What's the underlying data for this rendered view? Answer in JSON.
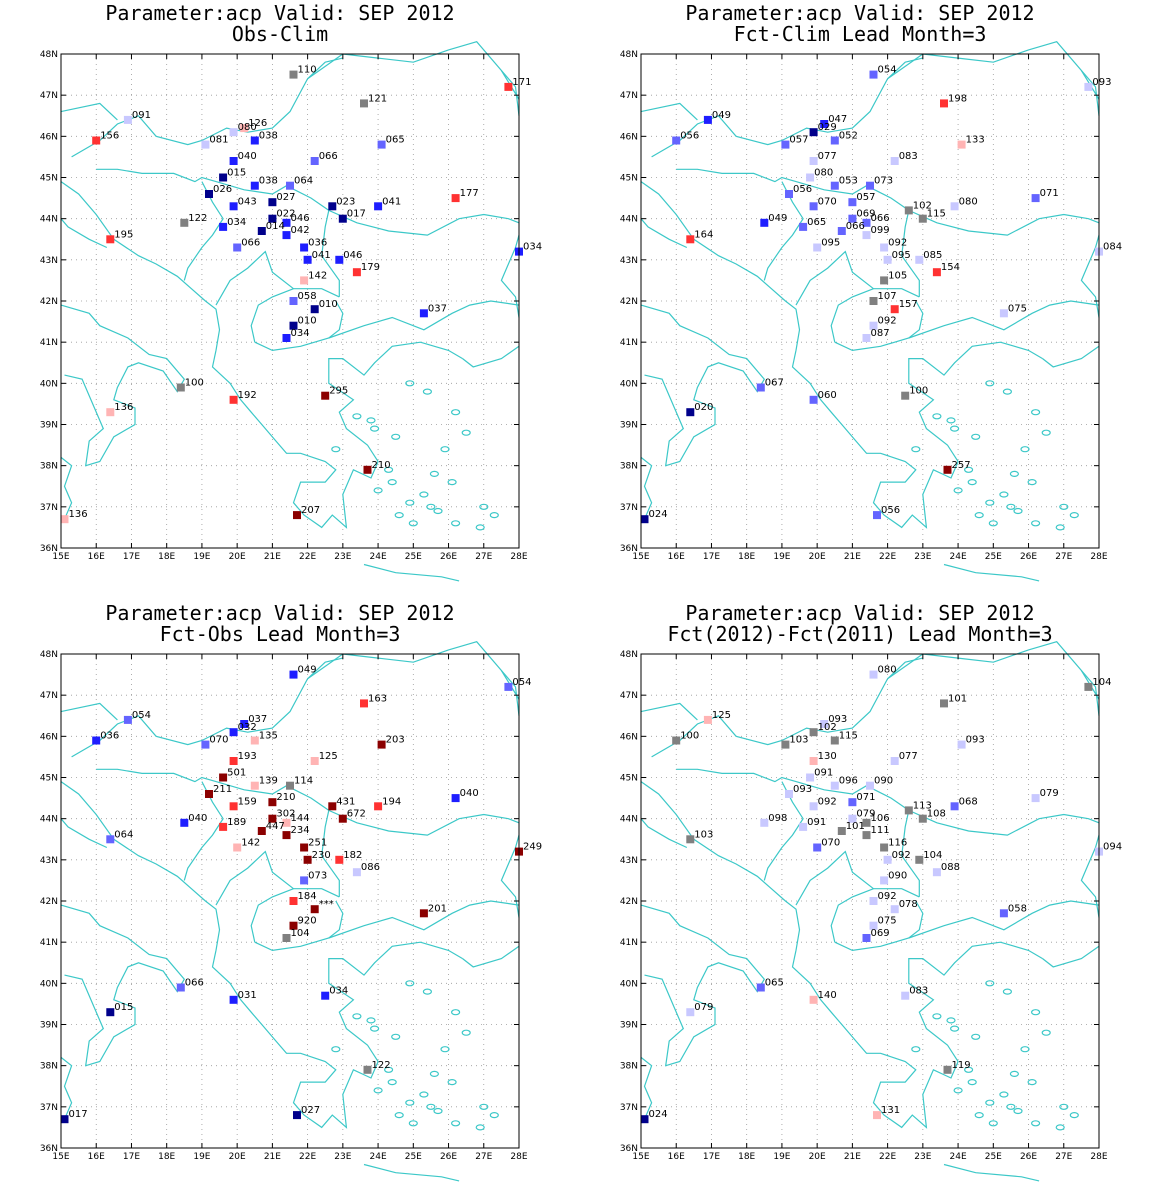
{
  "panels": [
    {
      "title1": "Parameter:acp Valid: SEP 2012",
      "title2": "Obs-Clim",
      "stations": [
        {
          "lon": 21.6,
          "lat": 47.5,
          "v": "110"
        },
        {
          "lon": 27.7,
          "lat": 47.2,
          "v": "171"
        },
        {
          "lon": 23.6,
          "lat": 46.8,
          "v": "121"
        },
        {
          "lon": 16.9,
          "lat": 46.4,
          "v": "091"
        },
        {
          "lon": 20.2,
          "lat": 46.2,
          "v": "126"
        },
        {
          "lon": 19.9,
          "lat": 46.1,
          "v": "080"
        },
        {
          "lon": 16.0,
          "lat": 45.9,
          "v": "156"
        },
        {
          "lon": 19.1,
          "lat": 45.8,
          "v": "081"
        },
        {
          "lon": 20.5,
          "lat": 45.9,
          "v": "038"
        },
        {
          "lon": 24.1,
          "lat": 45.8,
          "v": "065"
        },
        {
          "lon": 22.2,
          "lat": 45.4,
          "v": "066"
        },
        {
          "lon": 19.9,
          "lat": 45.4,
          "v": "040"
        },
        {
          "lon": 19.6,
          "lat": 45.0,
          "v": "015"
        },
        {
          "lon": 20.5,
          "lat": 44.8,
          "v": "038"
        },
        {
          "lon": 21.5,
          "lat": 44.8,
          "v": "064"
        },
        {
          "lon": 19.2,
          "lat": 44.6,
          "v": "026"
        },
        {
          "lon": 21.0,
          "lat": 44.4,
          "v": "027"
        },
        {
          "lon": 19.9,
          "lat": 44.3,
          "v": "043"
        },
        {
          "lon": 22.7,
          "lat": 44.3,
          "v": "023"
        },
        {
          "lon": 24.0,
          "lat": 44.3,
          "v": "041"
        },
        {
          "lon": 26.2,
          "lat": 44.5,
          "v": "177"
        },
        {
          "lon": 21.0,
          "lat": 44.0,
          "v": "022"
        },
        {
          "lon": 21.4,
          "lat": 43.9,
          "v": "046"
        },
        {
          "lon": 23.0,
          "lat": 44.0,
          "v": "017"
        },
        {
          "lon": 18.5,
          "lat": 43.9,
          "v": "122"
        },
        {
          "lon": 19.6,
          "lat": 43.8,
          "v": "034"
        },
        {
          "lon": 20.7,
          "lat": 43.7,
          "v": "014"
        },
        {
          "lon": 21.4,
          "lat": 43.6,
          "v": "042"
        },
        {
          "lon": 16.4,
          "lat": 43.5,
          "v": "195"
        },
        {
          "lon": 20.0,
          "lat": 43.3,
          "v": "066"
        },
        {
          "lon": 21.9,
          "lat": 43.3,
          "v": "036"
        },
        {
          "lon": 22.0,
          "lat": 43.0,
          "v": "041"
        },
        {
          "lon": 22.9,
          "lat": 43.0,
          "v": "046"
        },
        {
          "lon": 23.4,
          "lat": 42.7,
          "v": "179"
        },
        {
          "lon": 21.9,
          "lat": 42.5,
          "v": "142"
        },
        {
          "lon": 21.6,
          "lat": 42.0,
          "v": "058"
        },
        {
          "lon": 22.2,
          "lat": 41.8,
          "v": "010"
        },
        {
          "lon": 25.3,
          "lat": 41.7,
          "v": "037"
        },
        {
          "lon": 21.6,
          "lat": 41.4,
          "v": "010"
        },
        {
          "lon": 21.4,
          "lat": 41.1,
          "v": "034"
        },
        {
          "lon": 18.4,
          "lat": 39.9,
          "v": "100"
        },
        {
          "lon": 19.9,
          "lat": 39.6,
          "v": "192"
        },
        {
          "lon": 22.5,
          "lat": 39.7,
          "v": "295"
        },
        {
          "lon": 16.4,
          "lat": 39.3,
          "v": "136"
        },
        {
          "lon": 23.7,
          "lat": 37.9,
          "v": "210"
        },
        {
          "lon": 21.7,
          "lat": 36.8,
          "v": "207"
        },
        {
          "lon": 15.1,
          "lat": 36.7,
          "v": "136"
        },
        {
          "lon": 28.0,
          "lat": 43.2,
          "v": "034"
        }
      ]
    },
    {
      "title1": "Parameter:acp Valid: SEP 2012",
      "title2": "Fct-Clim Lead Month=3",
      "stations": [
        {
          "lon": 21.6,
          "lat": 47.5,
          "v": "054"
        },
        {
          "lon": 27.7,
          "lat": 47.2,
          "v": "093"
        },
        {
          "lon": 23.6,
          "lat": 46.8,
          "v": "198"
        },
        {
          "lon": 16.9,
          "lat": 46.4,
          "v": "049"
        },
        {
          "lon": 20.2,
          "lat": 46.3,
          "v": "047"
        },
        {
          "lon": 19.9,
          "lat": 46.1,
          "v": "029"
        },
        {
          "lon": 16.0,
          "lat": 45.9,
          "v": "056"
        },
        {
          "lon": 19.1,
          "lat": 45.8,
          "v": "057"
        },
        {
          "lon": 20.5,
          "lat": 45.9,
          "v": "052"
        },
        {
          "lon": 24.1,
          "lat": 45.8,
          "v": "133"
        },
        {
          "lon": 22.2,
          "lat": 45.4,
          "v": "083"
        },
        {
          "lon": 19.9,
          "lat": 45.4,
          "v": "077"
        },
        {
          "lon": 19.8,
          "lat": 45.0,
          "v": "080"
        },
        {
          "lon": 20.5,
          "lat": 44.8,
          "v": "053"
        },
        {
          "lon": 21.5,
          "lat": 44.8,
          "v": "073"
        },
        {
          "lon": 19.2,
          "lat": 44.6,
          "v": "056"
        },
        {
          "lon": 21.0,
          "lat": 44.4,
          "v": "057"
        },
        {
          "lon": 19.9,
          "lat": 44.3,
          "v": "070"
        },
        {
          "lon": 22.6,
          "lat": 44.2,
          "v": "102"
        },
        {
          "lon": 23.9,
          "lat": 44.3,
          "v": "080"
        },
        {
          "lon": 26.2,
          "lat": 44.5,
          "v": "071"
        },
        {
          "lon": 21.0,
          "lat": 44.0,
          "v": "069"
        },
        {
          "lon": 21.4,
          "lat": 43.9,
          "v": "066"
        },
        {
          "lon": 23.0,
          "lat": 44.0,
          "v": "115"
        },
        {
          "lon": 18.5,
          "lat": 43.9,
          "v": "049"
        },
        {
          "lon": 19.6,
          "lat": 43.8,
          "v": "065"
        },
        {
          "lon": 20.7,
          "lat": 43.7,
          "v": "066"
        },
        {
          "lon": 21.4,
          "lat": 43.6,
          "v": "099"
        },
        {
          "lon": 16.4,
          "lat": 43.5,
          "v": "164"
        },
        {
          "lon": 20.0,
          "lat": 43.3,
          "v": "095"
        },
        {
          "lon": 21.9,
          "lat": 43.3,
          "v": "092"
        },
        {
          "lon": 22.0,
          "lat": 43.0,
          "v": "095"
        },
        {
          "lon": 22.9,
          "lat": 43.0,
          "v": "085"
        },
        {
          "lon": 23.4,
          "lat": 42.7,
          "v": "154"
        },
        {
          "lon": 21.9,
          "lat": 42.5,
          "v": "105"
        },
        {
          "lon": 21.6,
          "lat": 42.0,
          "v": "107"
        },
        {
          "lon": 22.2,
          "lat": 41.8,
          "v": "157"
        },
        {
          "lon": 25.3,
          "lat": 41.7,
          "v": "075"
        },
        {
          "lon": 21.6,
          "lat": 41.4,
          "v": "092"
        },
        {
          "lon": 21.4,
          "lat": 41.1,
          "v": "087"
        },
        {
          "lon": 18.4,
          "lat": 39.9,
          "v": "067"
        },
        {
          "lon": 19.9,
          "lat": 39.6,
          "v": "060"
        },
        {
          "lon": 22.5,
          "lat": 39.7,
          "v": "100"
        },
        {
          "lon": 16.4,
          "lat": 39.3,
          "v": "020"
        },
        {
          "lon": 23.7,
          "lat": 37.9,
          "v": "257"
        },
        {
          "lon": 21.7,
          "lat": 36.8,
          "v": "056"
        },
        {
          "lon": 15.1,
          "lat": 36.7,
          "v": "024"
        },
        {
          "lon": 28.0,
          "lat": 43.2,
          "v": "084"
        }
      ]
    },
    {
      "title1": "Parameter:acp Valid: SEP 2012",
      "title2": "Fct-Obs Lead Month=3",
      "stations": [
        {
          "lon": 21.6,
          "lat": 47.5,
          "v": "049"
        },
        {
          "lon": 27.7,
          "lat": 47.2,
          "v": "054"
        },
        {
          "lon": 23.6,
          "lat": 46.8,
          "v": "163"
        },
        {
          "lon": 16.9,
          "lat": 46.4,
          "v": "054"
        },
        {
          "lon": 20.2,
          "lat": 46.3,
          "v": "037"
        },
        {
          "lon": 19.9,
          "lat": 46.1,
          "v": "032"
        },
        {
          "lon": 16.0,
          "lat": 45.9,
          "v": "036"
        },
        {
          "lon": 19.1,
          "lat": 45.8,
          "v": "070"
        },
        {
          "lon": 20.5,
          "lat": 45.9,
          "v": "135"
        },
        {
          "lon": 24.1,
          "lat": 45.8,
          "v": "203"
        },
        {
          "lon": 22.2,
          "lat": 45.4,
          "v": "125"
        },
        {
          "lon": 19.9,
          "lat": 45.4,
          "v": "193"
        },
        {
          "lon": 19.6,
          "lat": 45.0,
          "v": "501"
        },
        {
          "lon": 20.5,
          "lat": 44.8,
          "v": "139"
        },
        {
          "lon": 21.5,
          "lat": 44.8,
          "v": "114"
        },
        {
          "lon": 19.2,
          "lat": 44.6,
          "v": "211"
        },
        {
          "lon": 21.0,
          "lat": 44.4,
          "v": "210"
        },
        {
          "lon": 19.9,
          "lat": 44.3,
          "v": "159"
        },
        {
          "lon": 22.7,
          "lat": 44.3,
          "v": "431"
        },
        {
          "lon": 24.0,
          "lat": 44.3,
          "v": "194"
        },
        {
          "lon": 26.2,
          "lat": 44.5,
          "v": "040"
        },
        {
          "lon": 21.0,
          "lat": 44.0,
          "v": "302"
        },
        {
          "lon": 21.4,
          "lat": 43.9,
          "v": "144"
        },
        {
          "lon": 23.0,
          "lat": 44.0,
          "v": "672"
        },
        {
          "lon": 18.5,
          "lat": 43.9,
          "v": "040"
        },
        {
          "lon": 19.6,
          "lat": 43.8,
          "v": "189"
        },
        {
          "lon": 20.7,
          "lat": 43.7,
          "v": "447"
        },
        {
          "lon": 21.4,
          "lat": 43.6,
          "v": "234"
        },
        {
          "lon": 16.4,
          "lat": 43.5,
          "v": "064"
        },
        {
          "lon": 20.0,
          "lat": 43.3,
          "v": "142"
        },
        {
          "lon": 21.9,
          "lat": 43.3,
          "v": "251"
        },
        {
          "lon": 22.0,
          "lat": 43.0,
          "v": "230"
        },
        {
          "lon": 22.9,
          "lat": 43.0,
          "v": "182"
        },
        {
          "lon": 23.4,
          "lat": 42.7,
          "v": "086"
        },
        {
          "lon": 21.9,
          "lat": 42.5,
          "v": "073"
        },
        {
          "lon": 21.6,
          "lat": 42.0,
          "v": "184"
        },
        {
          "lon": 22.2,
          "lat": 41.8,
          "v": "***"
        },
        {
          "lon": 25.3,
          "lat": 41.7,
          "v": "201"
        },
        {
          "lon": 21.6,
          "lat": 41.4,
          "v": "920"
        },
        {
          "lon": 21.4,
          "lat": 41.1,
          "v": "104"
        },
        {
          "lon": 18.4,
          "lat": 39.9,
          "v": "066"
        },
        {
          "lon": 19.9,
          "lat": 39.6,
          "v": "031"
        },
        {
          "lon": 22.5,
          "lat": 39.7,
          "v": "034"
        },
        {
          "lon": 16.4,
          "lat": 39.3,
          "v": "015"
        },
        {
          "lon": 23.7,
          "lat": 37.9,
          "v": "122"
        },
        {
          "lon": 21.7,
          "lat": 36.8,
          "v": "027"
        },
        {
          "lon": 15.1,
          "lat": 36.7,
          "v": "017"
        },
        {
          "lon": 28.0,
          "lat": 43.2,
          "v": "249"
        }
      ]
    },
    {
      "title1": "Parameter:acp Valid: SEP 2012",
      "title2": "Fct(2012)-Fct(2011) Lead Month=3",
      "stations": [
        {
          "lon": 21.6,
          "lat": 47.5,
          "v": "080"
        },
        {
          "lon": 27.7,
          "lat": 47.2,
          "v": "104"
        },
        {
          "lon": 23.6,
          "lat": 46.8,
          "v": "101"
        },
        {
          "lon": 16.9,
          "lat": 46.4,
          "v": "125"
        },
        {
          "lon": 20.2,
          "lat": 46.3,
          "v": "093"
        },
        {
          "lon": 19.9,
          "lat": 46.1,
          "v": "102"
        },
        {
          "lon": 16.0,
          "lat": 45.9,
          "v": "100"
        },
        {
          "lon": 19.1,
          "lat": 45.8,
          "v": "103"
        },
        {
          "lon": 20.5,
          "lat": 45.9,
          "v": "115"
        },
        {
          "lon": 24.1,
          "lat": 45.8,
          "v": "093"
        },
        {
          "lon": 22.2,
          "lat": 45.4,
          "v": "077"
        },
        {
          "lon": 19.9,
          "lat": 45.4,
          "v": "130"
        },
        {
          "lon": 19.8,
          "lat": 45.0,
          "v": "091"
        },
        {
          "lon": 20.5,
          "lat": 44.8,
          "v": "096"
        },
        {
          "lon": 21.5,
          "lat": 44.8,
          "v": "090"
        },
        {
          "lon": 19.2,
          "lat": 44.6,
          "v": "093"
        },
        {
          "lon": 21.0,
          "lat": 44.4,
          "v": "071"
        },
        {
          "lon": 19.9,
          "lat": 44.3,
          "v": "092"
        },
        {
          "lon": 22.6,
          "lat": 44.2,
          "v": "113"
        },
        {
          "lon": 23.9,
          "lat": 44.3,
          "v": "068"
        },
        {
          "lon": 26.2,
          "lat": 44.5,
          "v": "079"
        },
        {
          "lon": 21.0,
          "lat": 44.0,
          "v": "079"
        },
        {
          "lon": 21.4,
          "lat": 43.9,
          "v": "106"
        },
        {
          "lon": 23.0,
          "lat": 44.0,
          "v": "108"
        },
        {
          "lon": 18.5,
          "lat": 43.9,
          "v": "098"
        },
        {
          "lon": 19.6,
          "lat": 43.8,
          "v": "091"
        },
        {
          "lon": 20.7,
          "lat": 43.7,
          "v": "101"
        },
        {
          "lon": 21.4,
          "lat": 43.6,
          "v": "111"
        },
        {
          "lon": 16.4,
          "lat": 43.5,
          "v": "103"
        },
        {
          "lon": 20.0,
          "lat": 43.3,
          "v": "070"
        },
        {
          "lon": 21.9,
          "lat": 43.3,
          "v": "116"
        },
        {
          "lon": 22.0,
          "lat": 43.0,
          "v": "092"
        },
        {
          "lon": 22.9,
          "lat": 43.0,
          "v": "104"
        },
        {
          "lon": 23.4,
          "lat": 42.7,
          "v": "088"
        },
        {
          "lon": 21.9,
          "lat": 42.5,
          "v": "090"
        },
        {
          "lon": 21.6,
          "lat": 42.0,
          "v": "092"
        },
        {
          "lon": 22.2,
          "lat": 41.8,
          "v": "078"
        },
        {
          "lon": 25.3,
          "lat": 41.7,
          "v": "058"
        },
        {
          "lon": 21.6,
          "lat": 41.4,
          "v": "075"
        },
        {
          "lon": 21.4,
          "lat": 41.1,
          "v": "069"
        },
        {
          "lon": 18.4,
          "lat": 39.9,
          "v": "065"
        },
        {
          "lon": 19.9,
          "lat": 39.6,
          "v": "140"
        },
        {
          "lon": 22.5,
          "lat": 39.7,
          "v": "083"
        },
        {
          "lon": 16.4,
          "lat": 39.3,
          "v": "079"
        },
        {
          "lon": 23.7,
          "lat": 37.9,
          "v": "119"
        },
        {
          "lon": 21.7,
          "lat": 36.8,
          "v": "131"
        },
        {
          "lon": 15.1,
          "lat": 36.7,
          "v": "024"
        },
        {
          "lon": 28.0,
          "lat": 43.2,
          "v": "094"
        }
      ]
    }
  ],
  "axes": {
    "lat_labels": [
      "36N",
      "37N",
      "38N",
      "39N",
      "40N",
      "41N",
      "42N",
      "43N",
      "44N",
      "45N",
      "46N",
      "47N",
      "48N"
    ],
    "lon_labels": [
      "15E",
      "16E",
      "17E",
      "18E",
      "19E",
      "20E",
      "21E",
      "22E",
      "23E",
      "24E",
      "25E",
      "26E",
      "27E",
      "28E"
    ],
    "lat_range": [
      36,
      48
    ],
    "lon_range": [
      15,
      28
    ]
  },
  "colors": {
    "coast": "#3cc8c8",
    "grid": "#9a9a9a",
    "near_normal": "#808080",
    "dark_blue": "#00008b",
    "blue": "#1e1eff",
    "mid_blue": "#6464ff",
    "light_blue": "#c8c8ff",
    "light_red": "#ffb4b4",
    "red": "#ff3232",
    "dark_red": "#8b0000"
  }
}
